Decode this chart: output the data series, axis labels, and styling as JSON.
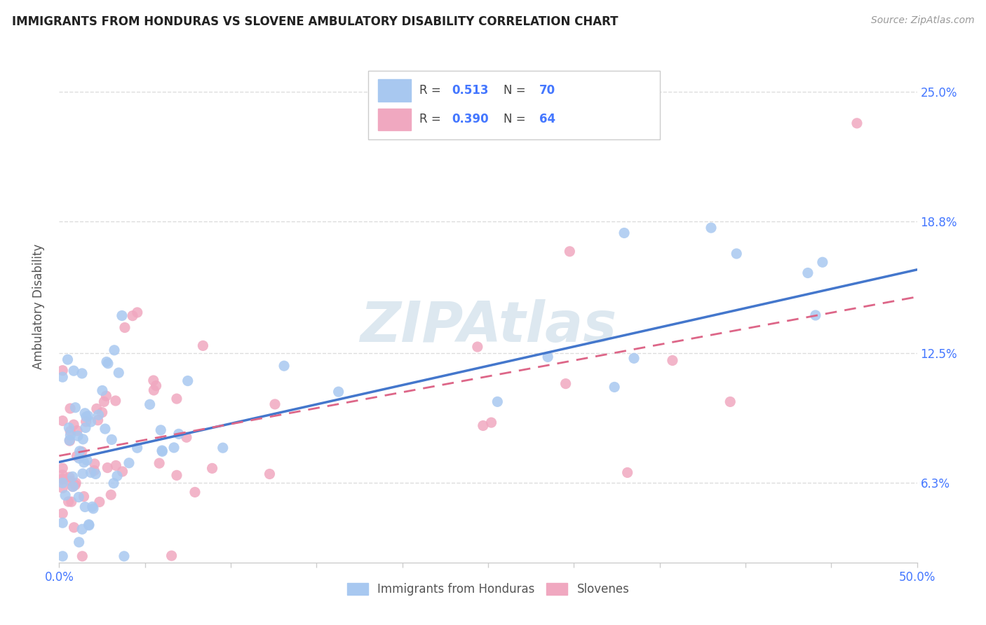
{
  "title": "IMMIGRANTS FROM HONDURAS VS SLOVENE AMBULATORY DISABILITY CORRELATION CHART",
  "source": "Source: ZipAtlas.com",
  "ylabel": "Ambulatory Disability",
  "yticks": [
    "6.3%",
    "12.5%",
    "18.8%",
    "25.0%"
  ],
  "ytick_vals": [
    0.063,
    0.125,
    0.188,
    0.25
  ],
  "xlim": [
    0.0,
    0.5
  ],
  "ylim": [
    0.025,
    0.27
  ],
  "legend_bottom": [
    "Immigrants from Honduras",
    "Slovenes"
  ],
  "legend_bottom_colors": [
    "#a8c8f0",
    "#f0a8c0"
  ],
  "blue_line_x": [
    0.0,
    0.5
  ],
  "blue_line_y": [
    0.073,
    0.165
  ],
  "pink_line_x": [
    0.0,
    0.5
  ],
  "pink_line_y": [
    0.076,
    0.152
  ],
  "title_color": "#222222",
  "scatter_blue": "#a8c8f0",
  "scatter_pink": "#f0a8c0",
  "line_blue": "#4477cc",
  "line_pink": "#dd6688",
  "text_blue": "#4477ff",
  "label_color": "#555555",
  "watermark_color": "#dde8f0",
  "background_color": "#ffffff",
  "grid_color": "#dddddd"
}
